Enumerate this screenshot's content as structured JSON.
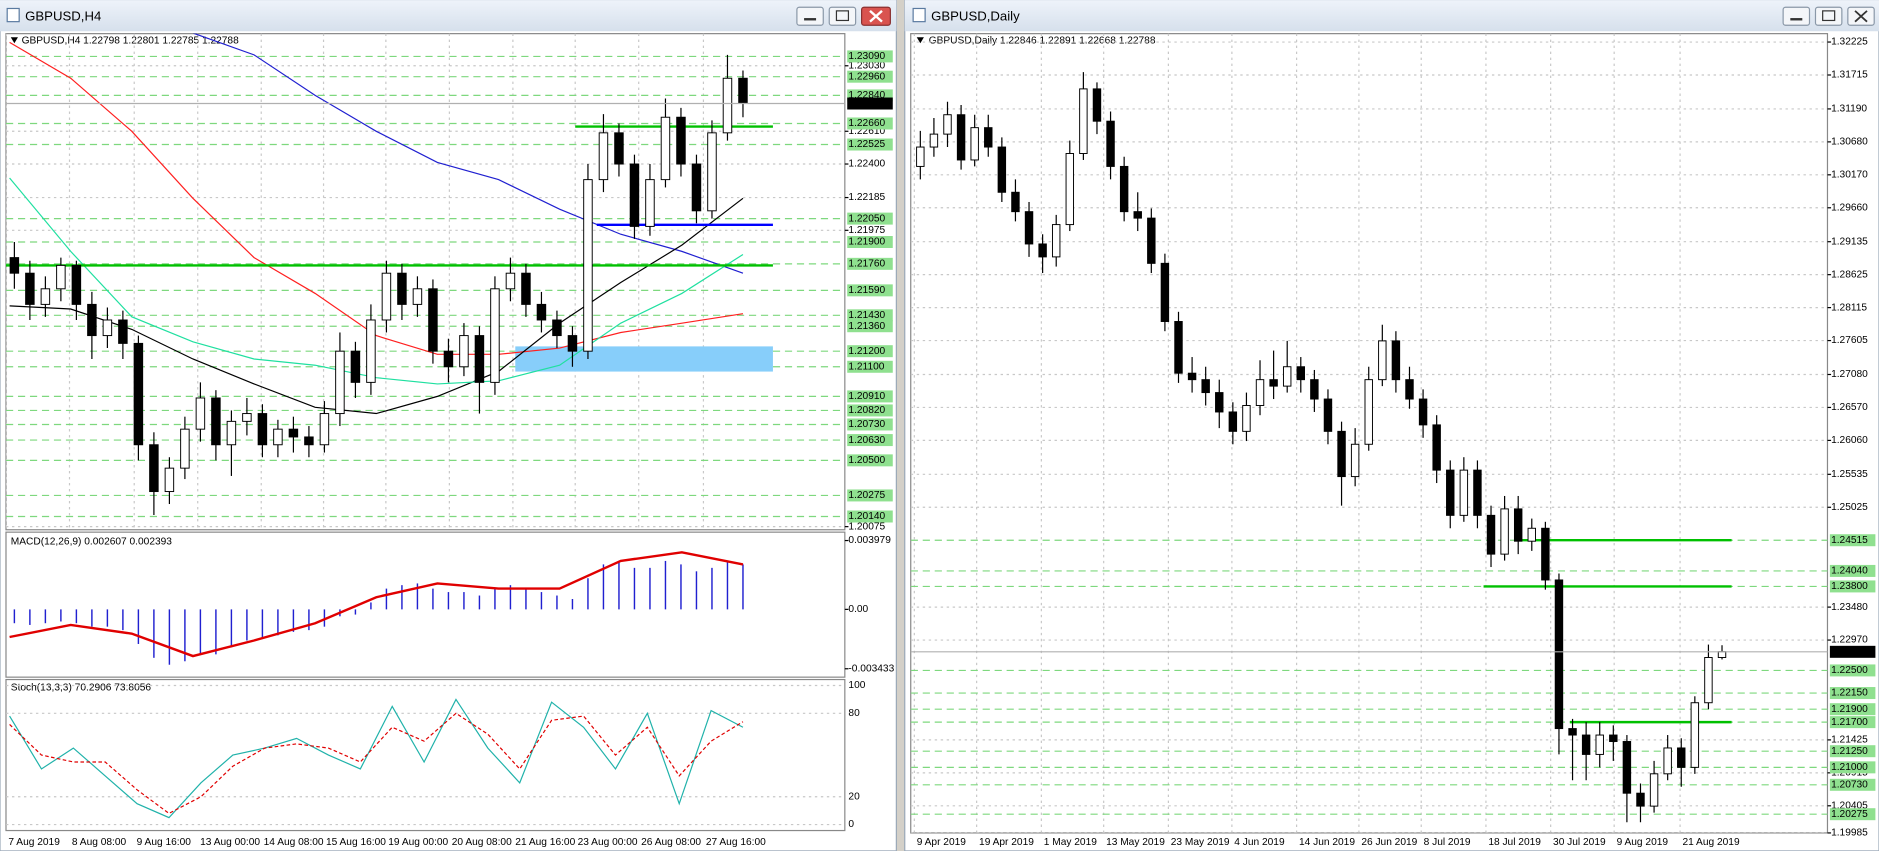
{
  "windows": [
    {
      "title": "GBPUSD,H4",
      "info": "GBPUSD,H4  1.22798 1.22801 1.22785 1.22788",
      "ylim": [
        1.20055,
        1.23236
      ],
      "ticks": [
        {
          "value": 1.2303,
          "label": "1.23030"
        },
        {
          "value": 1.2261,
          "label": "1.22610"
        },
        {
          "value": 1.224,
          "label": "1.22400"
        },
        1.22185,
        1.21975,
        1.20075
      ],
      "levels": [
        {
          "value": 1.2309,
          "label": "1.23090"
        },
        {
          "value": 1.2296,
          "label": "1.22960"
        },
        {
          "value": 1.2284,
          "label": "1.22840"
        },
        {
          "value": 1.2266,
          "label": "1.22660"
        },
        1.22525,
        {
          "value": 1.2205,
          "label": "1.22050"
        },
        {
          "value": 1.219,
          "label": "1.21900"
        },
        {
          "value": 1.2176,
          "label": "1.21760"
        },
        {
          "value": 1.2159,
          "label": "1.21590"
        },
        {
          "value": 1.2143,
          "label": "1.21430"
        },
        {
          "value": 1.2136,
          "label": "1.21360"
        },
        {
          "value": 1.212,
          "label": "1.21200"
        },
        {
          "value": 1.211,
          "label": "1.21100"
        },
        {
          "value": 1.2091,
          "label": "1.20910"
        },
        {
          "value": 1.2082,
          "label": "1.20820"
        },
        {
          "value": 1.2073,
          "label": "1.20730"
        },
        {
          "value": 1.2063,
          "label": "1.20630"
        },
        {
          "value": 1.205,
          "label": "1.20500"
        },
        1.20275,
        {
          "value": 1.2014,
          "label": "1.20140"
        }
      ],
      "current": 1.22788,
      "xlabels": [
        "7 Aug 2019",
        "8 Aug 08:00",
        "9 Aug 16:00",
        "13 Aug 00:00",
        "14 Aug 08:00",
        "15 Aug 16:00",
        "19 Aug 00:00",
        "20 Aug 08:00",
        "21 Aug 16:00",
        "23 Aug 00:00",
        "26 Aug 08:00",
        "27 Aug 16:00"
      ],
      "candles": [
        [
          1.218,
          1.219,
          1.216,
          1.217
        ],
        [
          1.217,
          1.2178,
          1.214,
          1.215
        ],
        [
          1.215,
          1.2168,
          1.2142,
          1.216
        ],
        [
          1.216,
          1.218,
          1.2152,
          1.2175
        ],
        [
          1.2175,
          1.2178,
          1.214,
          1.215
        ],
        [
          1.215,
          1.2158,
          1.2115,
          1.213
        ],
        [
          1.213,
          1.2148,
          1.2122,
          1.214
        ],
        [
          1.214,
          1.2146,
          1.2115,
          1.2125
        ],
        [
          1.2125,
          1.213,
          1.205,
          1.206
        ],
        [
          1.206,
          1.2068,
          1.2015,
          1.203
        ],
        [
          1.203,
          1.2052,
          1.2022,
          1.2045
        ],
        [
          1.2045,
          1.2078,
          1.2038,
          1.207
        ],
        [
          1.207,
          1.21,
          1.2062,
          1.209
        ],
        [
          1.209,
          1.2095,
          1.205,
          1.206
        ],
        [
          1.206,
          1.2082,
          1.204,
          1.2075
        ],
        [
          1.2075,
          1.209,
          1.2066,
          1.208
        ],
        [
          1.208,
          1.2086,
          1.2052,
          1.206
        ],
        [
          1.206,
          1.2076,
          1.2052,
          1.207
        ],
        [
          1.207,
          1.2078,
          1.2055,
          1.2065
        ],
        [
          1.2065,
          1.2072,
          1.2052,
          1.206
        ],
        [
          1.206,
          1.2088,
          1.2055,
          1.208
        ],
        [
          1.208,
          1.2132,
          1.2072,
          1.212
        ],
        [
          1.212,
          1.2126,
          1.209,
          1.21
        ],
        [
          1.21,
          1.215,
          1.2092,
          1.214
        ],
        [
          1.214,
          1.2178,
          1.2132,
          1.217
        ],
        [
          1.217,
          1.2176,
          1.214,
          1.215
        ],
        [
          1.215,
          1.2168,
          1.2142,
          1.216
        ],
        [
          1.216,
          1.2166,
          1.2112,
          1.212
        ],
        [
          1.212,
          1.2128,
          1.21,
          1.211
        ],
        [
          1.211,
          1.2138,
          1.2104,
          1.213
        ],
        [
          1.213,
          1.2136,
          1.208,
          1.21
        ],
        [
          1.21,
          1.2168,
          1.2092,
          1.216
        ],
        [
          1.216,
          1.218,
          1.2152,
          1.217
        ],
        [
          1.217,
          1.2176,
          1.2142,
          1.215
        ],
        [
          1.215,
          1.2158,
          1.2132,
          1.214
        ],
        [
          1.214,
          1.2146,
          1.2122,
          1.213
        ],
        [
          1.213,
          1.2136,
          1.211,
          1.212
        ],
        [
          1.212,
          1.224,
          1.2115,
          1.223
        ],
        [
          1.223,
          1.2272,
          1.2222,
          1.226
        ],
        [
          1.226,
          1.2266,
          1.2232,
          1.224
        ],
        [
          1.224,
          1.2246,
          1.2192,
          1.22
        ],
        [
          1.22,
          1.224,
          1.2194,
          1.223
        ],
        [
          1.223,
          1.2282,
          1.2225,
          1.227
        ],
        [
          1.227,
          1.2276,
          1.2232,
          1.224
        ],
        [
          1.224,
          1.2246,
          1.2202,
          1.221
        ],
        [
          1.221,
          1.2268,
          1.2205,
          1.226
        ],
        [
          1.226,
          1.231,
          1.2255,
          1.2295
        ],
        [
          1.2295,
          1.23,
          1.227,
          1.2279
        ]
      ],
      "ma": [
        {
          "color": "#ff2020",
          "values": [
            1.2318,
            1.2295,
            1.2261,
            1.2218,
            1.218,
            1.2157,
            1.213,
            1.2118,
            1.2118,
            1.2122,
            1.2132,
            1.2138,
            1.2144
          ]
        },
        {
          "color": "#2020d0",
          "values": [
            null,
            null,
            null,
            1.2324,
            1.231,
            1.2284,
            1.2261,
            1.2241,
            1.223,
            1.2211,
            1.2195,
            1.2184,
            1.217
          ]
        },
        {
          "color": "#000000",
          "values": [
            1.2149,
            1.2147,
            1.2134,
            1.2115,
            1.2099,
            1.2084,
            1.208,
            1.2091,
            1.2107,
            1.2138,
            1.2164,
            1.2188,
            1.2218
          ]
        },
        {
          "color": "#20e0a0",
          "values": [
            1.2231,
            1.2184,
            1.2142,
            1.2126,
            1.2115,
            1.2111,
            1.2103,
            1.2099,
            1.2101,
            1.2111,
            1.2138,
            1.2157,
            1.2182
          ]
        }
      ],
      "lines": [
        {
          "value": 1.2175,
          "color": "#00c000"
        },
        {
          "value": 1.2264,
          "color": "#00c000"
        },
        {
          "value": 1.2201,
          "color": "#0000ff"
        }
      ],
      "zone": [
        1.211,
        1.212
      ],
      "macd": {
        "label": "MACD(12,26,9) 0.002607 0.002393",
        "ylim": [
          -0.003918,
          0.004464
        ],
        "ticks": [
          0.003979,
          {
            "value": 0,
            "label": "0.00"
          },
          -0.003433
        ],
        "histogram": [
          -0.0008,
          -0.0009,
          -0.0008,
          -0.0007,
          -0.0008,
          -0.001,
          -0.001,
          -0.0012,
          -0.002,
          -0.0028,
          -0.0032,
          -0.003,
          -0.0026,
          -0.0026,
          -0.0022,
          -0.0018,
          -0.0017,
          -0.0015,
          -0.0013,
          -0.0012,
          -0.001,
          -0.0004,
          -0.0003,
          0.0004,
          0.0012,
          0.0014,
          0.0015,
          0.0012,
          0.001,
          0.001,
          0.0008,
          0.0012,
          0.0014,
          0.0012,
          0.001,
          0.0008,
          0.0006,
          0.0018,
          0.0026,
          0.0028,
          0.0024,
          0.0024,
          0.0028,
          0.0026,
          0.0022,
          0.0024,
          0.0028,
          0.0026
        ],
        "signal": [
          -0.0016,
          -0.0009,
          -0.0014,
          -0.0027,
          -0.0018,
          -0.0008,
          0.0007,
          0.0015,
          0.0012,
          0.0012,
          0.0028,
          0.0033,
          0.0026
        ]
      },
      "stoch": {
        "label": "Stoch(13,3,3) 70.2906 73.8056",
        "ylim": [
          -4.3,
          104.3
        ],
        "ticks": [
          100,
          80,
          20,
          0
        ],
        "main": [
          78,
          40,
          55,
          35,
          15,
          5,
          30,
          50,
          55,
          62,
          50,
          40,
          85,
          45,
          90,
          55,
          30,
          88,
          70,
          40,
          80,
          15,
          82,
          70
        ],
        "signal": [
          72,
          50,
          45,
          45,
          25,
          8,
          20,
          42,
          55,
          58,
          55,
          45,
          70,
          60,
          80,
          65,
          40,
          75,
          78,
          50,
          70,
          35,
          60,
          74
        ]
      }
    },
    {
      "title": "GBPUSD,Daily",
      "info": "GBPUSD,Daily  1.22846 1.22891 1.22668 1.22788",
      "ylim": [
        1.19985,
        1.32355
      ],
      "ticks": [
        1.32225,
        1.31715,
        {
          "value": 1.3119,
          "label": "1.31190"
        },
        {
          "value": 1.3068,
          "label": "1.30680"
        },
        {
          "value": 1.3017,
          "label": "1.30170"
        },
        {
          "value": 1.2966,
          "label": "1.29660"
        },
        1.29135,
        1.28625,
        1.28115,
        1.27605,
        {
          "value": 1.2708,
          "label": "1.27080"
        },
        {
          "value": 1.2657,
          "label": "1.26570"
        },
        {
          "value": 1.2606,
          "label": "1.26060"
        },
        1.25535,
        1.25025,
        {
          "value": 1.2348,
          "label": "1.23480"
        },
        {
          "value": 1.2297,
          "label": "1.22970"
        },
        1.21425,
        1.20915,
        1.20405,
        1.19985
      ],
      "levels": [
        1.24515,
        {
          "value": 1.2404,
          "label": "1.24040"
        },
        {
          "value": 1.238,
          "label": "1.23800"
        },
        {
          "value": 1.225,
          "label": "1.22500"
        },
        {
          "value": 1.2215,
          "label": "1.22150"
        },
        {
          "value": 1.219,
          "label": "1.21900"
        },
        {
          "value": 1.217,
          "label": "1.21700"
        },
        {
          "value": 1.2125,
          "label": "1.21250"
        },
        {
          "value": 1.21,
          "label": "1.21000"
        },
        {
          "value": 1.2073,
          "label": "1.20730"
        },
        1.20275
      ],
      "current": 1.22788,
      "xlabels": [
        "9 Apr 2019",
        "19 Apr 2019",
        "1 May 2019",
        "13 May 2019",
        "23 May 2019",
        "4 Jun 2019",
        "14 Jun 2019",
        "26 Jun 2019",
        "8 Jul 2019",
        "18 Jul 2019",
        "30 Jul 2019",
        "9 Aug 2019",
        "21 Aug 2019"
      ],
      "candles": [
        [
          1.303,
          1.3085,
          1.301,
          1.306
        ],
        [
          1.306,
          1.3105,
          1.3045,
          1.308
        ],
        [
          1.308,
          1.313,
          1.306,
          1.311
        ],
        [
          1.311,
          1.3125,
          1.3025,
          1.304
        ],
        [
          1.304,
          1.311,
          1.303,
          1.309
        ],
        [
          1.309,
          1.311,
          1.3045,
          1.306
        ],
        [
          1.306,
          1.3075,
          1.2975,
          1.299
        ],
        [
          1.299,
          1.301,
          1.2945,
          1.296
        ],
        [
          1.296,
          1.2975,
          1.289,
          1.291
        ],
        [
          1.291,
          1.2925,
          1.2865,
          1.289
        ],
        [
          1.289,
          1.2955,
          1.2875,
          1.294
        ],
        [
          1.294,
          1.307,
          1.293,
          1.305
        ],
        [
          1.305,
          1.3176,
          1.304,
          1.315
        ],
        [
          1.315,
          1.316,
          1.308,
          1.31
        ],
        [
          1.31,
          1.3115,
          1.301,
          1.303
        ],
        [
          1.303,
          1.3045,
          1.2945,
          1.296
        ],
        [
          1.296,
          1.299,
          1.293,
          1.295
        ],
        [
          1.295,
          1.2965,
          1.2865,
          1.288
        ],
        [
          1.288,
          1.2895,
          1.2775,
          1.279
        ],
        [
          1.279,
          1.2805,
          1.2695,
          1.271
        ],
        [
          1.271,
          1.2735,
          1.268,
          1.27
        ],
        [
          1.27,
          1.272,
          1.266,
          1.268
        ],
        [
          1.268,
          1.27,
          1.2625,
          1.265
        ],
        [
          1.265,
          1.2665,
          1.26,
          1.262
        ],
        [
          1.262,
          1.268,
          1.2605,
          1.266
        ],
        [
          1.266,
          1.273,
          1.2645,
          1.27
        ],
        [
          1.27,
          1.2745,
          1.267,
          1.269
        ],
        [
          1.269,
          1.276,
          1.268,
          1.272
        ],
        [
          1.272,
          1.2735,
          1.268,
          1.27
        ],
        [
          1.27,
          1.2715,
          1.265,
          1.267
        ],
        [
          1.267,
          1.2685,
          1.26,
          1.262
        ],
        [
          1.262,
          1.2635,
          1.2505,
          1.255
        ],
        [
          1.255,
          1.2625,
          1.2535,
          1.26
        ],
        [
          1.26,
          1.272,
          1.259,
          1.27
        ],
        [
          1.27,
          1.2785,
          1.269,
          1.276
        ],
        [
          1.276,
          1.2775,
          1.268,
          1.27
        ],
        [
          1.27,
          1.272,
          1.2655,
          1.267
        ],
        [
          1.267,
          1.2685,
          1.261,
          1.263
        ],
        [
          1.263,
          1.2645,
          1.254,
          1.256
        ],
        [
          1.256,
          1.2575,
          1.247,
          1.249
        ],
        [
          1.249,
          1.258,
          1.248,
          1.256
        ],
        [
          1.256,
          1.2575,
          1.247,
          1.249
        ],
        [
          1.249,
          1.2505,
          1.241,
          1.243
        ],
        [
          1.243,
          1.252,
          1.242,
          1.25
        ],
        [
          1.25,
          1.252,
          1.243,
          1.245
        ],
        [
          1.245,
          1.2485,
          1.2435,
          1.247
        ],
        [
          1.247,
          1.248,
          1.2375,
          1.239
        ],
        [
          1.239,
          1.24,
          1.212,
          1.216
        ],
        [
          1.216,
          1.2175,
          1.208,
          1.215
        ],
        [
          1.215,
          1.217,
          1.208,
          1.212
        ],
        [
          1.212,
          1.217,
          1.21,
          1.215
        ],
        [
          1.215,
          1.2165,
          1.211,
          1.214
        ],
        [
          1.214,
          1.215,
          1.2015,
          1.206
        ],
        [
          1.206,
          1.2075,
          1.2015,
          1.204
        ],
        [
          1.204,
          1.211,
          1.203,
          1.209
        ],
        [
          1.209,
          1.215,
          1.208,
          1.213
        ],
        [
          1.213,
          1.2145,
          1.207,
          1.21
        ],
        [
          1.21,
          1.221,
          1.209,
          1.22
        ],
        [
          1.22,
          1.229,
          1.219,
          1.227
        ],
        [
          1.227,
          1.2289,
          1.2267,
          1.2279
        ]
      ],
      "lines": [
        {
          "value": 1.24515,
          "color": "#00c000"
        },
        {
          "value": 1.238,
          "color": "#00c000"
        },
        {
          "value": 1.217,
          "color": "#00c000"
        }
      ]
    }
  ]
}
